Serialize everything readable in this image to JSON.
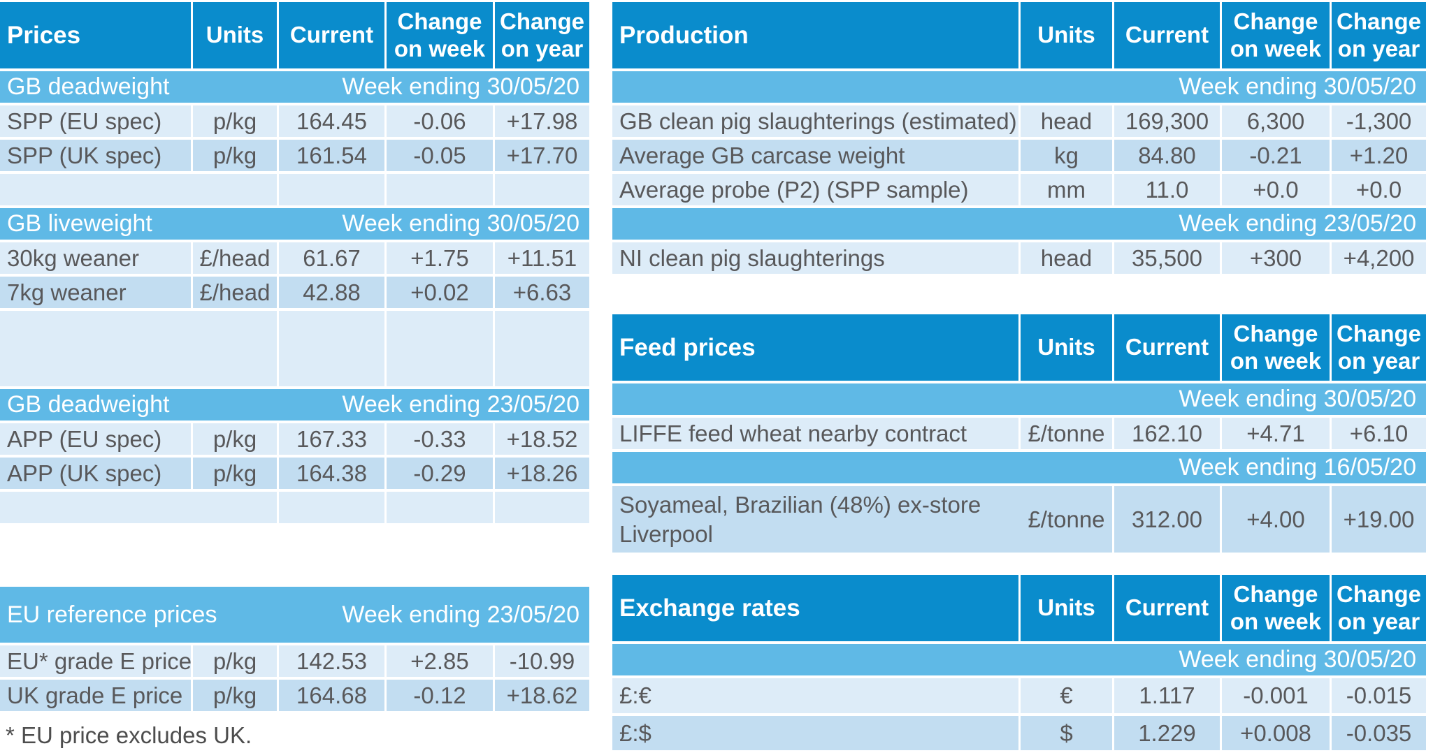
{
  "palette": {
    "header_blue": "#0a8ccc",
    "band_blue": "#5fb9e6",
    "row_light": "#ddecf8",
    "row_mid": "#c2ddf1",
    "text_grey": "#58585a",
    "flag_green": "#1f7d1f"
  },
  "prices": {
    "header": {
      "title": "Prices",
      "units": "Units",
      "current": "Current",
      "week": "Change on week",
      "year": "Change on year"
    },
    "sections": [
      {
        "band": {
          "label": "GB deadweight",
          "week": "Week ending 30/05/20"
        },
        "rows": [
          {
            "label": "SPP (EU spec)",
            "units": "p/kg",
            "current": "164.45",
            "week": "-0.06",
            "year": "+17.98"
          },
          {
            "label": "SPP (UK spec)",
            "units": "p/kg",
            "current": "161.54",
            "week": "-0.05",
            "year": "+17.70"
          }
        ]
      },
      {
        "band": {
          "label": "GB liveweight",
          "week": "Week ending 30/05/20"
        },
        "rows": [
          {
            "label": "30kg weaner",
            "units": "£/head",
            "current": "61.67",
            "week": "+1.75",
            "year": "+11.51"
          },
          {
            "label": "7kg weaner",
            "units": "£/head",
            "current": "42.88",
            "week": "+0.02",
            "year": "+6.63"
          }
        ]
      },
      {
        "band": {
          "label": "GB deadweight",
          "week": "Week ending 23/05/20"
        },
        "rows": [
          {
            "label": "APP (EU spec)",
            "units": "p/kg",
            "current": "167.33",
            "week": "-0.33",
            "year": "+18.52"
          },
          {
            "label": "APP (UK spec)",
            "units": "p/kg",
            "current": "164.38",
            "week": "-0.29",
            "year": "+18.26"
          }
        ]
      }
    ]
  },
  "eu_reference": {
    "band": {
      "label": "EU reference prices",
      "week": "Week ending 23/05/20"
    },
    "rows": [
      {
        "label": "EU* grade E price",
        "units": "p/kg",
        "current": "142.53",
        "week": "+2.85",
        "year": "-10.99"
      },
      {
        "label": "UK grade E price",
        "units": "p/kg",
        "current": "164.68",
        "week": "-0.12",
        "year": "+18.62"
      }
    ],
    "footnote": "* EU price excludes UK."
  },
  "production": {
    "header": {
      "title": "Production",
      "units": "Units",
      "current": "Current",
      "week": "Change on week",
      "year": "Change on year"
    },
    "sections": [
      {
        "band": {
          "label": "",
          "week": "Week ending 30/05/20"
        },
        "rows": [
          {
            "label": "GB clean pig slaughterings (estimated)",
            "units": "head",
            "current": "169,300",
            "week": "6,300",
            "year": "-1,300"
          },
          {
            "label": "Average GB carcase weight",
            "units": "kg",
            "current": "84.80",
            "week": "-0.21",
            "year": "+1.20"
          },
          {
            "label": "Average probe (P2) (SPP sample)",
            "units": "mm",
            "current": "11.0",
            "week": "+0.0",
            "year": "+0.0"
          }
        ]
      },
      {
        "band": {
          "label": "",
          "week": "Week ending 23/05/20"
        },
        "rows": [
          {
            "label": "NI clean pig slaughterings",
            "units": "head",
            "current": "35,500",
            "week": "+300",
            "year": "+4,200"
          }
        ]
      }
    ]
  },
  "feed": {
    "header": {
      "title": "Feed prices",
      "units": "Units",
      "current": "Current",
      "week": "Change on week",
      "year": "Change on year"
    },
    "band1": {
      "label": "",
      "week": "Week ending 30/05/20"
    },
    "row1": {
      "label": "LIFFE feed wheat nearby contract",
      "units": "£/tonne",
      "current": "162.10",
      "week": "+4.71",
      "year": "+6.10"
    },
    "band2": {
      "label": "",
      "week": "Week ending 16/05/20"
    },
    "row2": {
      "label": "Soyameal, Brazilian (48%) ex-store Liverpool",
      "units": "£/tonne",
      "current": "312.00",
      "week": "+4.00",
      "year": "+19.00"
    }
  },
  "exchange": {
    "header": {
      "title": "Exchange rates",
      "units": "Units",
      "current": "Current",
      "week": "Change on week",
      "year": "Change on year"
    },
    "band": {
      "label": "",
      "week": "Week ending 30/05/20"
    },
    "rows": [
      {
        "label": "£:€",
        "units": "€",
        "current": "1.117",
        "week": "-0.001",
        "year": "-0.015"
      },
      {
        "label": "£:$",
        "units": "$",
        "current": "1.229",
        "week": "+0.008",
        "year": "-0.035"
      }
    ]
  }
}
